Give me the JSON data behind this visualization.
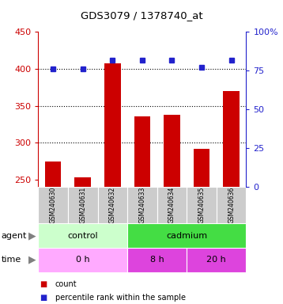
{
  "title": "GDS3079 / 1378740_at",
  "samples": [
    "GSM240630",
    "GSM240631",
    "GSM240632",
    "GSM240633",
    "GSM240634",
    "GSM240635",
    "GSM240636"
  ],
  "counts": [
    274,
    253,
    407,
    336,
    338,
    292,
    370
  ],
  "percentile_ranks": [
    76,
    76,
    82,
    82,
    82,
    77,
    82
  ],
  "ylim_left": [
    240,
    450
  ],
  "ylim_right": [
    0,
    100
  ],
  "yticks_left": [
    250,
    300,
    350,
    400,
    450
  ],
  "yticks_right": [
    0,
    25,
    50,
    75,
    100
  ],
  "bar_color": "#cc0000",
  "dot_color": "#2222cc",
  "agent_labels": [
    {
      "label": "control",
      "start": 0,
      "end": 3,
      "color": "#ccffcc"
    },
    {
      "label": "cadmium",
      "start": 3,
      "end": 7,
      "color": "#44dd44"
    }
  ],
  "time_labels": [
    {
      "label": "0 h",
      "start": 0,
      "end": 3,
      "color": "#ffaaff"
    },
    {
      "label": "8 h",
      "start": 3,
      "end": 5,
      "color": "#dd44dd"
    },
    {
      "label": "20 h",
      "start": 5,
      "end": 7,
      "color": "#dd44dd"
    }
  ],
  "sample_bg_color": "#cccccc",
  "legend_count_color": "#cc0000",
  "legend_pct_color": "#2222cc",
  "left_axis_color": "#cc0000",
  "right_axis_color": "#2222cc",
  "grid_lines": [
    300,
    350,
    400
  ],
  "bar_bottom": 240
}
